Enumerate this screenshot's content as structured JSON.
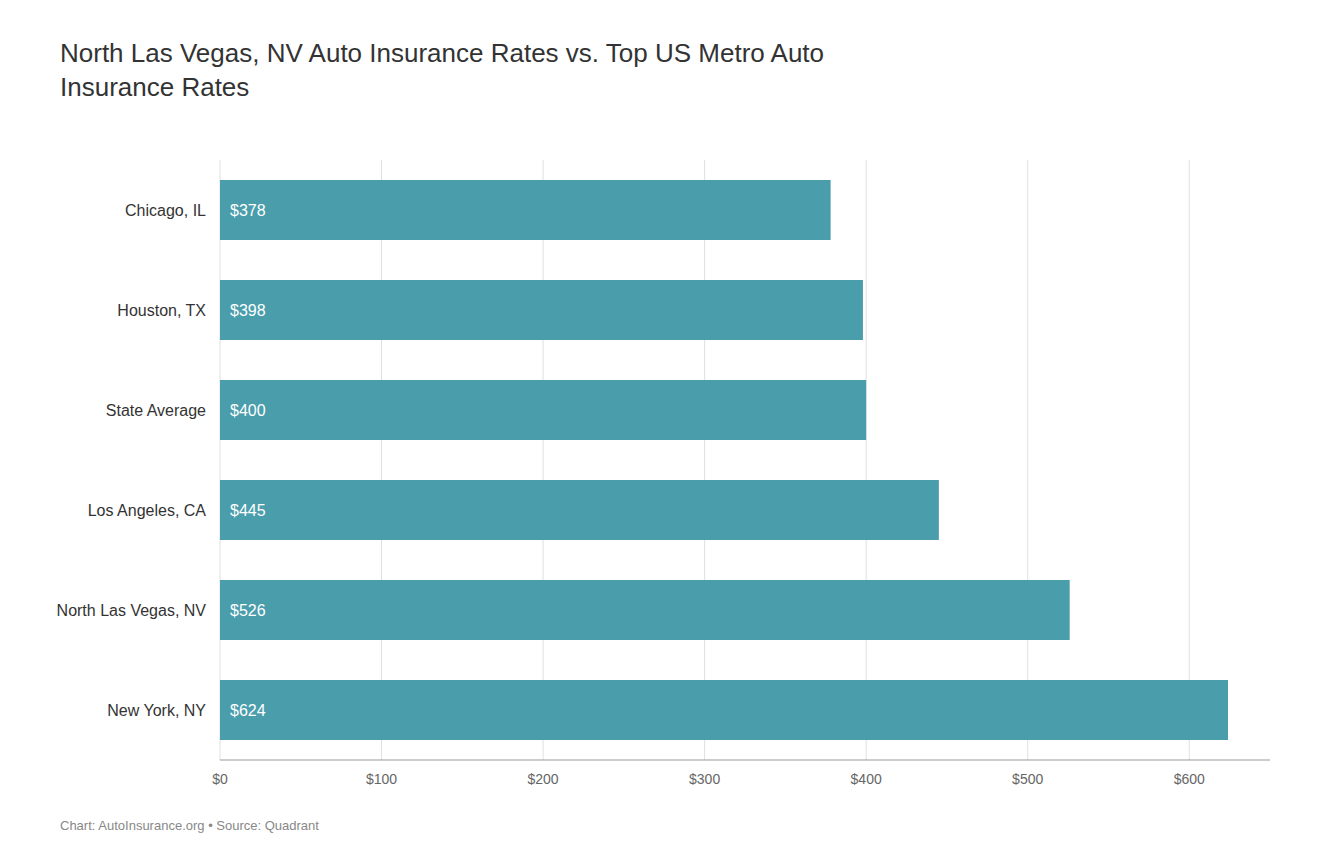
{
  "chart_data": {
    "type": "bar",
    "orientation": "horizontal",
    "title": "North Las Vegas, NV Auto Insurance Rates vs. Top US Metro Auto\nInsurance Rates",
    "annotations": [
      "Chart: AutoInsurance.org • Source: Quadrant"
    ],
    "categories": [
      "Chicago, IL",
      "Houston, TX",
      "State Average",
      "Los Angeles, CA",
      "North Las Vegas, NV",
      "New York, NY"
    ],
    "values": [
      378,
      398,
      400,
      445,
      526,
      624
    ],
    "value_labels": [
      "$378",
      "$398",
      "$400",
      "$445",
      "$526",
      "$624"
    ],
    "data_labels": true,
    "color": "#4a9dab",
    "xlim": [
      0,
      650
    ],
    "xticks": [
      {
        "value": 0,
        "label": "$0"
      },
      {
        "value": 100,
        "label": "$100"
      },
      {
        "value": 200,
        "label": "$200"
      },
      {
        "value": 300,
        "label": "$300"
      },
      {
        "value": 400,
        "label": "$400"
      },
      {
        "value": 500,
        "label": "$500"
      },
      {
        "value": 600,
        "label": "$600"
      }
    ],
    "grid": true
  }
}
